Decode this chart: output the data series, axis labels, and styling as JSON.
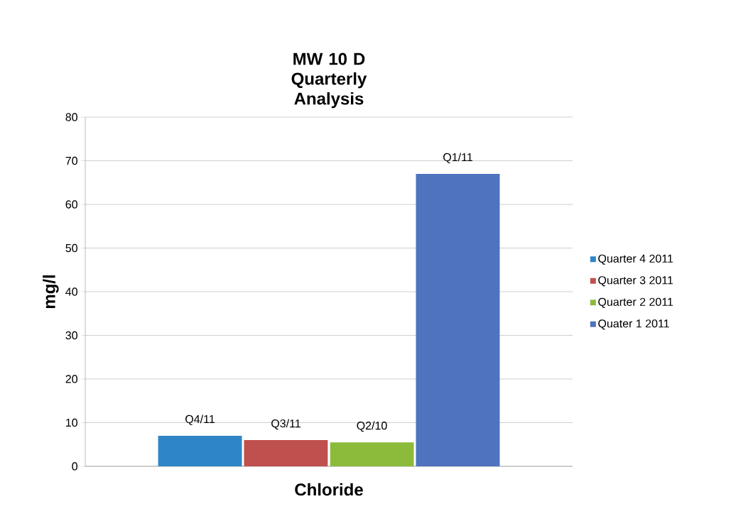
{
  "chart_data": {
    "type": "bar",
    "title": "MW 10 D Quarterly Analysis",
    "ylabel": "mg/l",
    "categories": [
      "Chloride"
    ],
    "series": [
      {
        "name": "Quarter 4 2011",
        "color": "#2e86c8",
        "values": [
          7
        ],
        "value_labels": [
          "Q4/11"
        ]
      },
      {
        "name": "Quarter 3 2011",
        "color": "#c0504d",
        "values": [
          6
        ],
        "value_labels": [
          "Q3/11"
        ]
      },
      {
        "name": "Quarter 2 2011",
        "color": "#8cbb3c",
        "values": [
          5.5
        ],
        "value_labels": [
          "Q2/10"
        ]
      },
      {
        "name": "Quater 1 2011",
        "color": "#4f73be",
        "values": [
          67
        ],
        "value_labels": [
          "Q1/11"
        ]
      }
    ],
    "ylim": [
      0,
      80
    ],
    "yticks": [
      0,
      10,
      20,
      30,
      40,
      50,
      60,
      70,
      80
    ],
    "grid": "y",
    "legend": "right"
  }
}
